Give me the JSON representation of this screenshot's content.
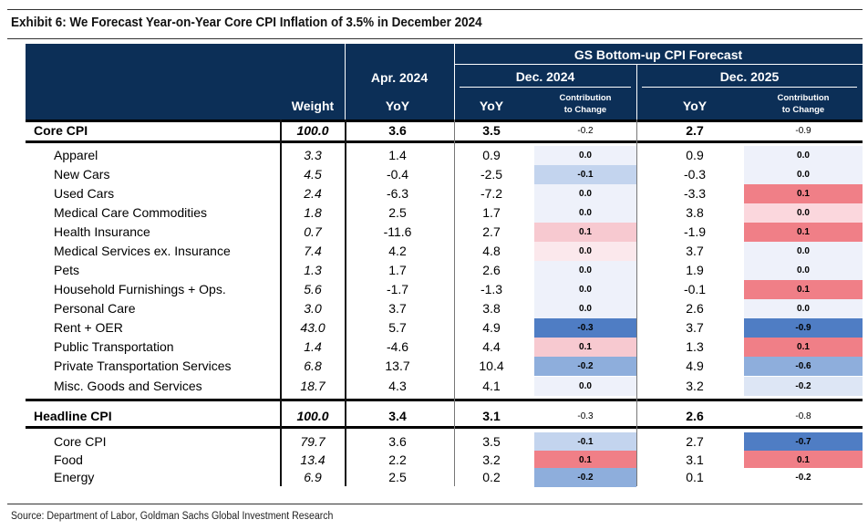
{
  "title": "Exhibit 6: We Forecast Year-on-Year Core CPI Inflation of 3.5% in December 2024",
  "source": "Source: Department of Labor, Goldman Sachs Global Investment Research",
  "header": {
    "group_title": "GS Bottom-up CPI Forecast",
    "weight": "Weight",
    "apr_title": "Apr. 2024",
    "apr_yoy": "YoY",
    "dec24_title": "Dec. 2024",
    "dec24_yoy": "YoY",
    "dec24_contrib_1": "Contribution",
    "dec24_contrib_2": "to Change",
    "dec25_title": "Dec. 2025",
    "dec25_yoy": "YoY",
    "dec25_contrib_1": "Contribution",
    "dec25_contrib_2": "to Change"
  },
  "colors": {
    "header_bg": "#0c2f57",
    "neg_strong": "#4f7dc4",
    "neg_medium": "#8eaedc",
    "neg_light": "#c3d4ee",
    "neutral_blue": "#eef1fa",
    "neutral_pink": "#fbe8ec",
    "pos_light": "#f7c9d0",
    "pos_strong": "#f07f87"
  },
  "rows": [
    {
      "label": "Core CPI",
      "weight": "100.0",
      "apr": "3.6",
      "d24": "3.5",
      "d24c": "-0.2",
      "d24c_bg": "#ffffff",
      "d25": "2.7",
      "d25c": "-0.9",
      "d25c_bg": "#ffffff",
      "main": true
    },
    {
      "label": "Apparel",
      "weight": "3.3",
      "apr": "1.4",
      "d24": "0.9",
      "d24c": "0.0",
      "d24c_bg": "#eef1fa",
      "d25": "0.9",
      "d25c": "0.0",
      "d25c_bg": "#eef1fa"
    },
    {
      "label": "New Cars",
      "weight": "4.5",
      "apr": "-0.4",
      "d24": "-2.5",
      "d24c": "-0.1",
      "d24c_bg": "#c3d4ee",
      "d25": "-0.3",
      "d25c": "0.0",
      "d25c_bg": "#eef1fa"
    },
    {
      "label": "Used Cars",
      "weight": "2.4",
      "apr": "-6.3",
      "d24": "-7.2",
      "d24c": "0.0",
      "d24c_bg": "#eef1fa",
      "d25": "-3.3",
      "d25c": "0.1",
      "d25c_bg": "#f07f87"
    },
    {
      "label": "Medical Care Commodities",
      "weight": "1.8",
      "apr": "2.5",
      "d24": "1.7",
      "d24c": "0.0",
      "d24c_bg": "#eef1fa",
      "d25": "3.8",
      "d25c": "0.0",
      "d25c_bg": "#fbd7dd"
    },
    {
      "label": "Health Insurance",
      "weight": "0.7",
      "apr": "-11.6",
      "d24": "2.7",
      "d24c": "0.1",
      "d24c_bg": "#f7c9d0",
      "d25": "-1.9",
      "d25c": "0.1",
      "d25c_bg": "#f07f87"
    },
    {
      "label": "Medical Services ex. Insurance",
      "weight": "7.4",
      "apr": "4.2",
      "d24": "4.8",
      "d24c": "0.0",
      "d24c_bg": "#fbe8ec",
      "d25": "3.7",
      "d25c": "0.0",
      "d25c_bg": "#eef1fa"
    },
    {
      "label": "Pets",
      "weight": "1.3",
      "apr": "1.7",
      "d24": "2.6",
      "d24c": "0.0",
      "d24c_bg": "#eef1fa",
      "d25": "1.9",
      "d25c": "0.0",
      "d25c_bg": "#eef1fa"
    },
    {
      "label": "Household Furnishings + Ops.",
      "weight": "5.6",
      "apr": "-1.7",
      "d24": "-1.3",
      "d24c": "0.0",
      "d24c_bg": "#eef1fa",
      "d25": "-0.1",
      "d25c": "0.1",
      "d25c_bg": "#f07f87"
    },
    {
      "label": "Personal Care",
      "weight": "3.0",
      "apr": "3.7",
      "d24": "3.8",
      "d24c": "0.0",
      "d24c_bg": "#eef1fa",
      "d25": "2.6",
      "d25c": "0.0",
      "d25c_bg": "#eef1fa"
    },
    {
      "label": "Rent + OER",
      "weight": "43.0",
      "apr": "5.7",
      "d24": "4.9",
      "d24c": "-0.3",
      "d24c_bg": "#4f7dc4",
      "d25": "3.7",
      "d25c": "-0.9",
      "d25c_bg": "#4f7dc4"
    },
    {
      "label": "Public Transportation",
      "weight": "1.4",
      "apr": "-4.6",
      "d24": "4.4",
      "d24c": "0.1",
      "d24c_bg": "#f7c9d0",
      "d25": "1.3",
      "d25c": "0.1",
      "d25c_bg": "#f07f87"
    },
    {
      "label": "Private Transportation Services",
      "weight": "6.8",
      "apr": "13.7",
      "d24": "10.4",
      "d24c": "-0.2",
      "d24c_bg": "#8eaedc",
      "d25": "4.9",
      "d25c": "-0.6",
      "d25c_bg": "#8eaedc"
    },
    {
      "label": "Misc. Goods and Services",
      "weight": "18.7",
      "apr": "4.3",
      "d24": "4.1",
      "d24c": "0.0",
      "d24c_bg": "#eef1fa",
      "d25": "3.2",
      "d25c": "-0.2",
      "d25c_bg": "#dde6f5"
    },
    {
      "label": "Headline CPI",
      "weight": "100.0",
      "apr": "3.4",
      "d24": "3.1",
      "d24c": "-0.3",
      "d24c_bg": "#ffffff",
      "d25": "2.6",
      "d25c": "-0.8",
      "d25c_bg": "#ffffff",
      "main": true
    },
    {
      "label": "Core CPI",
      "weight": "79.7",
      "apr": "3.6",
      "d24": "3.5",
      "d24c": "-0.1",
      "d24c_bg": "#c3d4ee",
      "d25": "2.7",
      "d25c": "-0.7",
      "d25c_bg": "#4f7dc4"
    },
    {
      "label": "Food",
      "weight": "13.4",
      "apr": "2.2",
      "d24": "3.2",
      "d24c": "0.1",
      "d24c_bg": "#f07f87",
      "d25": "3.1",
      "d25c": "0.1",
      "d25c_bg": "#f07f87"
    },
    {
      "label": "Energy",
      "weight": "6.9",
      "apr": "2.5",
      "d24": "0.2",
      "d24c": "-0.2",
      "d24c_bg": "#8eaedc",
      "d25": "0.1",
      "d25c": "-0.2",
      "d25c_bg": "#ffffff"
    }
  ]
}
